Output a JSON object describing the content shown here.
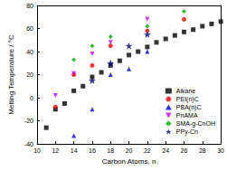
{
  "chart_data": {
    "type": "scatter",
    "x_label": "Carbon Atoms, n",
    "y_label": "Melting Temperature / °C",
    "xlim": [
      10,
      30
    ],
    "xticks": [
      10,
      12,
      14,
      16,
      18,
      20,
      22,
      24,
      26,
      28,
      30
    ],
    "ylim": [
      -40,
      80
    ],
    "yticks": [
      -40,
      -20,
      0,
      20,
      40,
      60,
      80
    ],
    "grid": false,
    "legend": "lower right",
    "series": [
      {
        "name": "Alkane",
        "color": "#000000",
        "marker": "square",
        "x": [
          11,
          12,
          13,
          14,
          15,
          16,
          17,
          18,
          19,
          20,
          21,
          22,
          23,
          24,
          25,
          26,
          27,
          28,
          29,
          30
        ],
        "values": [
          -26,
          -10,
          -5,
          6,
          10,
          18,
          22,
          28,
          32,
          37,
          40,
          44,
          48,
          51,
          54,
          57,
          59,
          62,
          64,
          66
        ]
      },
      {
        "name": "PEI(n)C",
        "color": "#ff0000",
        "marker": "circle",
        "x": [
          12,
          14,
          16,
          18,
          22,
          26
        ],
        "values": [
          -8,
          20,
          28,
          45,
          58,
          68
        ]
      },
      {
        "name": "PBA(n)C",
        "color": "#0000ff",
        "marker": "triangle",
        "x": [
          14,
          16,
          18,
          20,
          22
        ],
        "values": [
          -33,
          -10,
          20,
          25,
          40
        ]
      },
      {
        "name": "PnAMA",
        "color": "#cc00ff",
        "marker": "triangle-down",
        "x": [
          12,
          14,
          16,
          18,
          22
        ],
        "values": [
          2,
          21,
          38,
          48,
          68
        ]
      },
      {
        "name": "SMA-g-CnOH",
        "color": "#00aa00",
        "marker": "diamond",
        "x": [
          14,
          16,
          18,
          22,
          26
        ],
        "values": [
          33,
          45,
          53,
          62,
          75
        ]
      },
      {
        "name": "PPy-Cn",
        "color": "#000080",
        "marker": "star",
        "x": [
          16,
          18,
          20,
          22
        ],
        "values": [
          15,
          30,
          45,
          55
        ]
      }
    ]
  }
}
